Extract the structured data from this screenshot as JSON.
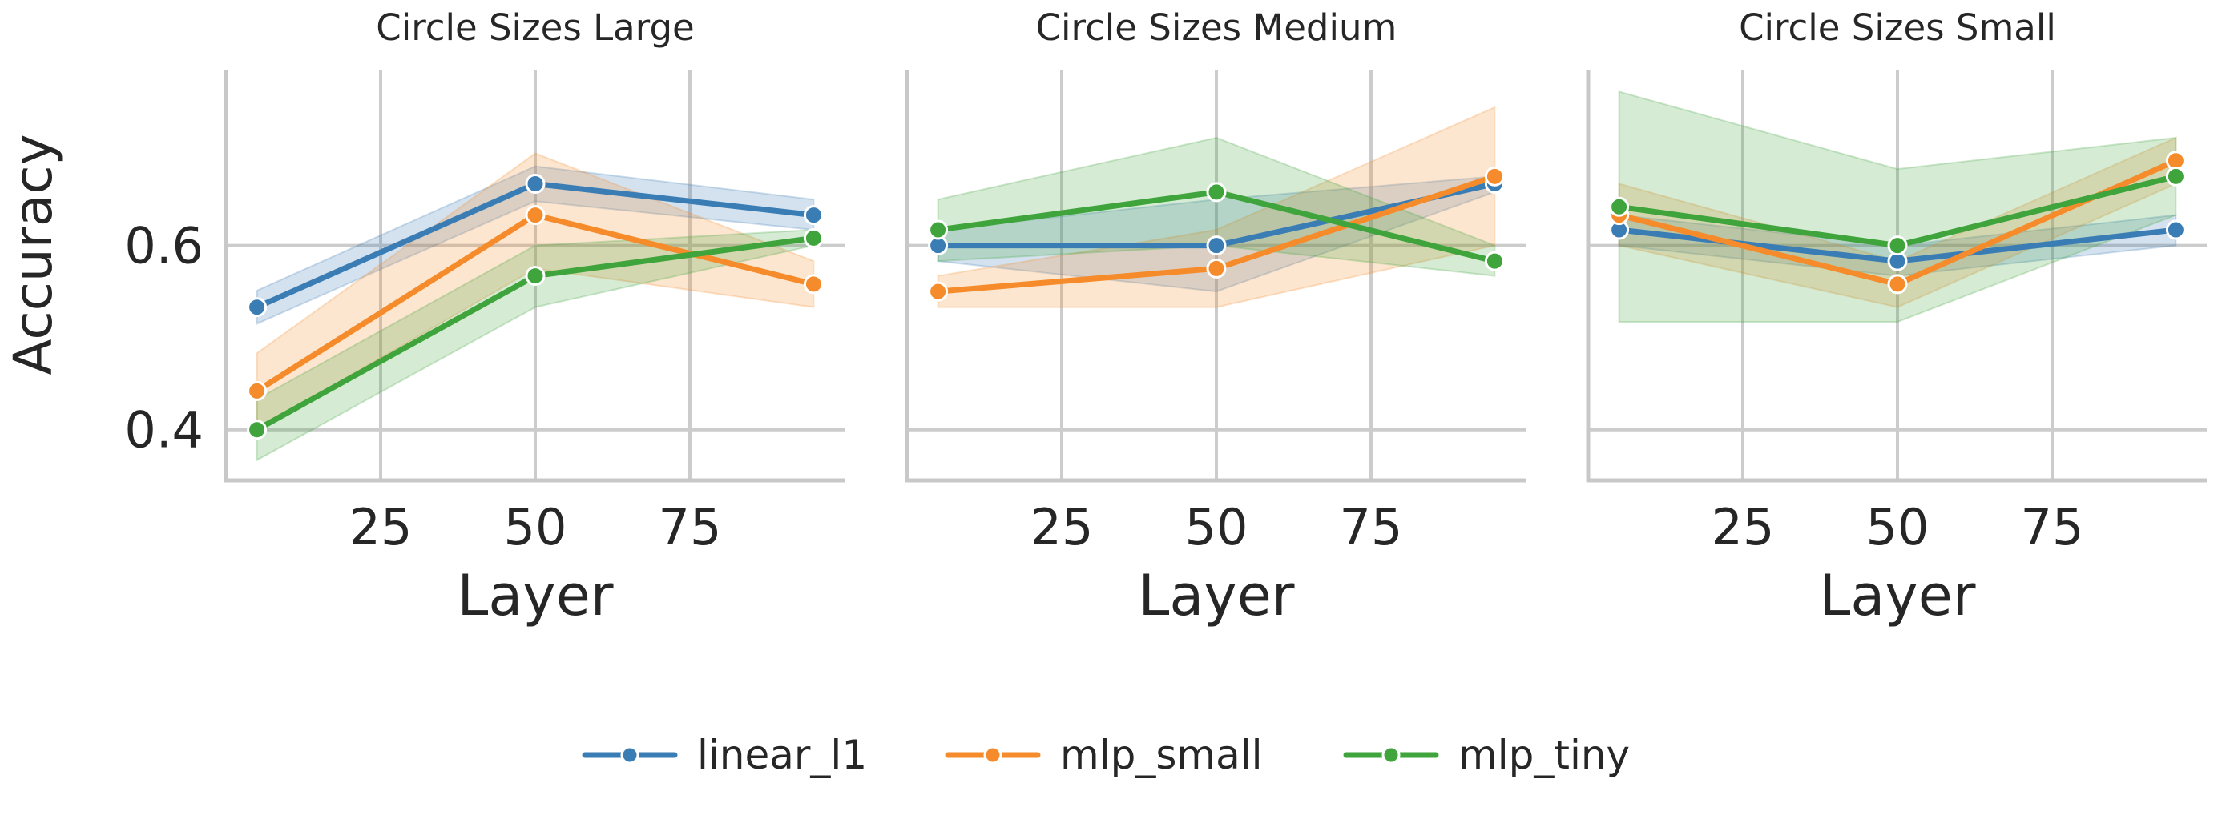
{
  "chart_data": {
    "type": "line",
    "ylabel": "Accuracy",
    "xlabel": "Layer",
    "x_ticks": [
      25,
      50,
      75
    ],
    "y_ticks": [
      0.4,
      0.6
    ],
    "xlim": [
      0,
      100
    ],
    "ylim": [
      0.345,
      0.79
    ],
    "legend": {
      "placement": "bottom-center",
      "entries": [
        "linear_l1",
        "mlp_small",
        "mlp_tiny"
      ]
    },
    "series_styles": [
      {
        "name": "linear_l1",
        "color": "#3a7db5"
      },
      {
        "name": "mlp_small",
        "color": "#f58b2a"
      },
      {
        "name": "mlp_tiny",
        "color": "#3ea43b"
      }
    ],
    "panels": [
      {
        "title": "Circle Sizes Large",
        "x": [
          5,
          50,
          95
        ],
        "series": [
          {
            "name": "linear_l1",
            "values": [
              0.533,
              0.667,
              0.633
            ],
            "lower": [
              0.515,
              0.648,
              0.617
            ],
            "upper": [
              0.551,
              0.686,
              0.65
            ]
          },
          {
            "name": "mlp_small",
            "values": [
              0.442,
              0.633,
              0.558
            ],
            "lower": [
              0.4,
              0.575,
              0.533
            ],
            "upper": [
              0.483,
              0.7,
              0.583
            ]
          },
          {
            "name": "mlp_tiny",
            "values": [
              0.4,
              0.567,
              0.608
            ],
            "lower": [
              0.367,
              0.533,
              0.6
            ],
            "upper": [
              0.433,
              0.6,
              0.617
            ]
          }
        ]
      },
      {
        "title": "Circle Sizes Medium",
        "x": [
          5,
          50,
          95
        ],
        "series": [
          {
            "name": "linear_l1",
            "values": [
              0.6,
              0.6,
              0.667
            ],
            "lower": [
              0.583,
              0.55,
              0.658
            ],
            "upper": [
              0.617,
              0.65,
              0.675
            ]
          },
          {
            "name": "mlp_small",
            "values": [
              0.55,
              0.575,
              0.675
            ],
            "lower": [
              0.533,
              0.533,
              0.6
            ],
            "upper": [
              0.567,
              0.617,
              0.75
            ]
          },
          {
            "name": "mlp_tiny",
            "values": [
              0.617,
              0.658,
              0.583
            ],
            "lower": [
              0.583,
              0.6,
              0.567
            ],
            "upper": [
              0.65,
              0.717,
              0.6
            ]
          }
        ]
      },
      {
        "title": "Circle Sizes Small",
        "x": [
          5,
          50,
          95
        ],
        "series": [
          {
            "name": "linear_l1",
            "values": [
              0.617,
              0.583,
              0.617
            ],
            "lower": [
              0.6,
              0.567,
              0.6
            ],
            "upper": [
              0.633,
              0.6,
              0.633
            ]
          },
          {
            "name": "mlp_small",
            "values": [
              0.633,
              0.558,
              0.692
            ],
            "lower": [
              0.6,
              0.533,
              0.667
            ],
            "upper": [
              0.667,
              0.583,
              0.717
            ]
          },
          {
            "name": "mlp_tiny",
            "values": [
              0.642,
              0.6,
              0.675
            ],
            "lower": [
              0.517,
              0.517,
              0.633
            ],
            "upper": [
              0.767,
              0.683,
              0.717
            ]
          }
        ]
      }
    ]
  }
}
